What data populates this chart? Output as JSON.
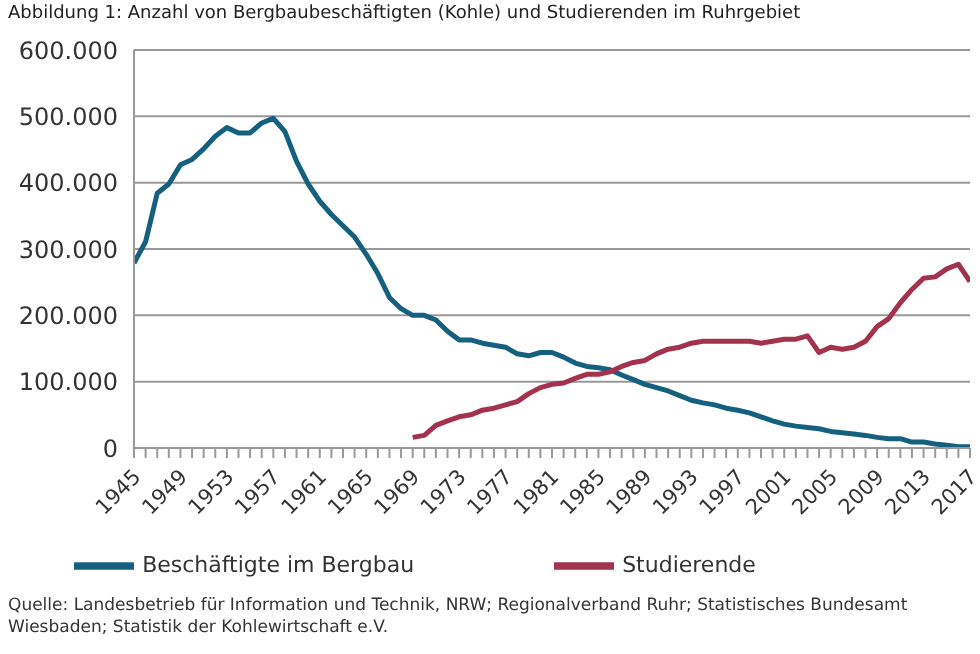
{
  "chart_data": {
    "type": "line",
    "title": "Abbildung 1: Anzahl von Bergbaubeschäftigten (Kohle) und Studierenden im Ruhrgebiet",
    "x": [
      1945,
      1946,
      1947,
      1948,
      1949,
      1950,
      1951,
      1952,
      1953,
      1954,
      1955,
      1956,
      1957,
      1958,
      1959,
      1960,
      1961,
      1962,
      1963,
      1964,
      1965,
      1966,
      1967,
      1968,
      1969,
      1970,
      1971,
      1972,
      1973,
      1974,
      1975,
      1976,
      1977,
      1978,
      1979,
      1980,
      1981,
      1982,
      1983,
      1984,
      1985,
      1986,
      1987,
      1988,
      1989,
      1990,
      1991,
      1992,
      1993,
      1994,
      1995,
      1996,
      1997,
      1998,
      1999,
      2000,
      2001,
      2002,
      2003,
      2004,
      2005,
      2006,
      2007,
      2008,
      2009,
      2010,
      2011,
      2012,
      2013,
      2014,
      2015,
      2016,
      2017
    ],
    "series": [
      {
        "name": "Beschäftigte im Bergbau",
        "color": "#16607f",
        "values": [
          279000,
          311000,
          384000,
          398000,
          427000,
          435000,
          451000,
          470000,
          483000,
          475000,
          475000,
          490000,
          497000,
          477000,
          432000,
          398000,
          372000,
          352000,
          335000,
          318000,
          292000,
          263000,
          227000,
          210000,
          200000,
          200000,
          193000,
          176000,
          163000,
          163000,
          158000,
          155000,
          152000,
          142000,
          139000,
          144000,
          144000,
          137000,
          128000,
          123000,
          121000,
          118000,
          110000,
          103000,
          96000,
          91000,
          86000,
          79000,
          72000,
          68000,
          65000,
          60000,
          57000,
          53000,
          47000,
          41000,
          36000,
          33000,
          31000,
          29000,
          25000,
          23000,
          21000,
          19000,
          16000,
          14000,
          14000,
          9000,
          9000,
          6000,
          4000,
          2000,
          2000
        ]
      },
      {
        "name": "Studierende",
        "color": "#a3324f",
        "values": [
          null,
          null,
          null,
          null,
          null,
          null,
          null,
          null,
          null,
          null,
          null,
          null,
          null,
          null,
          null,
          null,
          null,
          null,
          null,
          null,
          null,
          null,
          null,
          null,
          16000,
          19000,
          34000,
          41000,
          47000,
          50000,
          57000,
          60000,
          65000,
          70000,
          82000,
          91000,
          96000,
          98000,
          105000,
          111000,
          111000,
          115000,
          123000,
          129000,
          132000,
          142000,
          149000,
          152000,
          158000,
          161000,
          161000,
          161000,
          161000,
          161000,
          158000,
          161000,
          164000,
          164000,
          169000,
          144000,
          152000,
          149000,
          152000,
          161000,
          183000,
          195000,
          219000,
          239000,
          256000,
          258000,
          270000,
          277000,
          251000
        ]
      }
    ],
    "xlim": [
      1945,
      2017
    ],
    "xticks": [
      1945,
      {
        "value": 1946,
        "label": null
      },
      {
        "value": 1947,
        "label": null
      },
      {
        "value": 1948,
        "label": null
      },
      1949,
      {
        "value": 1950,
        "label": null
      },
      {
        "value": 1951,
        "label": null
      },
      {
        "value": 1952,
        "label": null
      },
      1953,
      {
        "value": 1954,
        "label": null
      },
      {
        "value": 1955,
        "label": null
      },
      {
        "value": 1956,
        "label": null
      },
      1957,
      {
        "value": 1958,
        "label": null
      },
      {
        "value": 1959,
        "label": null
      },
      {
        "value": 1960,
        "label": null
      },
      1961,
      {
        "value": 1962,
        "label": null
      },
      {
        "value": 1963,
        "label": null
      },
      {
        "value": 1964,
        "label": null
      },
      1965,
      {
        "value": 1966,
        "label": null
      },
      {
        "value": 1967,
        "label": null
      },
      {
        "value": 1968,
        "label": null
      },
      1969,
      {
        "value": 1970,
        "label": null
      },
      {
        "value": 1971,
        "label": null
      },
      {
        "value": 1972,
        "label": null
      },
      1973,
      {
        "value": 1974,
        "label": null
      },
      {
        "value": 1975,
        "label": null
      },
      {
        "value": 1976,
        "label": null
      },
      1977,
      {
        "value": 1978,
        "label": null
      },
      {
        "value": 1979,
        "label": null
      },
      {
        "value": 1980,
        "label": null
      },
      1981,
      {
        "value": 1982,
        "label": null
      },
      {
        "value": 1983,
        "label": null
      },
      {
        "value": 1984,
        "label": null
      },
      1985,
      {
        "value": 1986,
        "label": null
      },
      {
        "value": 1987,
        "label": null
      },
      {
        "value": 1988,
        "label": null
      },
      1989,
      {
        "value": 1990,
        "label": null
      },
      {
        "value": 1991,
        "label": null
      },
      {
        "value": 1992,
        "label": null
      },
      1993,
      {
        "value": 1994,
        "label": null
      },
      {
        "value": 1995,
        "label": null
      },
      {
        "value": 1996,
        "label": null
      },
      1997,
      {
        "value": 1998,
        "label": null
      },
      {
        "value": 1999,
        "label": null
      },
      {
        "value": 2000,
        "label": null
      },
      2001,
      {
        "value": 2002,
        "label": null
      },
      {
        "value": 2003,
        "label": null
      },
      {
        "value": 2004,
        "label": null
      },
      2005,
      {
        "value": 2006,
        "label": null
      },
      {
        "value": 2007,
        "label": null
      },
      {
        "value": 2008,
        "label": null
      },
      2009,
      {
        "value": 2010,
        "label": null
      },
      {
        "value": 2011,
        "label": null
      },
      {
        "value": 2012,
        "label": null
      },
      2013,
      {
        "value": 2014,
        "label": null
      },
      {
        "value": 2015,
        "label": null
      },
      {
        "value": 2016,
        "label": null
      },
      2017
    ],
    "ylim": [
      0,
      600000
    ],
    "yticks": [
      0,
      {
        "value": 100000,
        "label": "100.000"
      },
      {
        "value": 200000,
        "label": "200.000"
      },
      {
        "value": 300000,
        "label": "300.000"
      },
      {
        "value": 400000,
        "label": "400.000"
      },
      {
        "value": 500000,
        "label": "500.000"
      },
      {
        "value": 600000,
        "label": "600.000"
      }
    ],
    "grid": "y",
    "legend": "bottom",
    "marker": "none",
    "line_style": "solid",
    "annotations": [
      "Quelle: Landesbetrieb für Information und Technik, NRW; Regionalverband Ruhr; Statistisches Bundesamt Wiesbaden; Statistik der Kohlewirtschaft e.V."
    ]
  }
}
